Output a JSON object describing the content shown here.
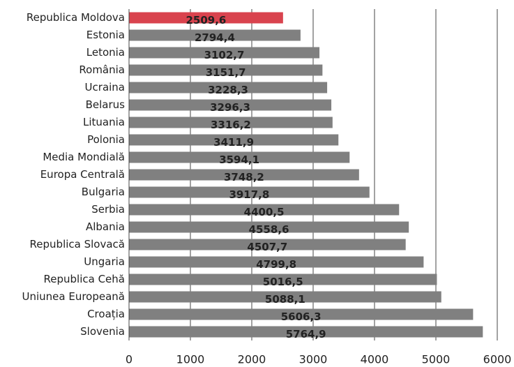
{
  "chart_data": {
    "type": "hbar",
    "categories": [
      "Republica Moldova",
      "Estonia",
      "Letonia",
      "România",
      "Ucraina",
      "Belarus",
      "Lituania",
      "Polonia",
      "Media Mondială",
      "Europa Centrală",
      "Bulgaria",
      "Serbia",
      "Albania",
      "Republica Slovacă",
      "Ungaria",
      "Republica Cehă",
      "Uniunea Europeană",
      "Croația",
      "Slovenia"
    ],
    "values": [
      2509.6,
      2794.4,
      3102.7,
      3151.7,
      3228.3,
      3296.3,
      3316.2,
      3411.9,
      3594.1,
      3748.2,
      3917.8,
      4400.5,
      4558.6,
      4507.7,
      4799.8,
      5016.5,
      5088.1,
      5606.3,
      5764.9
    ],
    "value_labels": [
      "2509,6",
      "2794,4",
      "3102,7",
      "3151,7",
      "3228,3",
      "3296,3",
      "3316,2",
      "3411,9",
      "3594,1",
      "3748,2",
      "3917,8",
      "4400,5",
      "4558,6",
      "4507,7",
      "4799,8",
      "5016,5",
      "5088,1",
      "5606,3",
      "5764,9"
    ],
    "colors": [
      "#d9434e",
      "#808080",
      "#808080",
      "#808080",
      "#808080",
      "#808080",
      "#808080",
      "#808080",
      "#808080",
      "#808080",
      "#808080",
      "#808080",
      "#808080",
      "#808080",
      "#808080",
      "#808080",
      "#808080",
      "#808080",
      "#808080"
    ],
    "xlim": [
      0,
      6000
    ],
    "xticks": [
      0,
      1000,
      2000,
      3000,
      4000,
      5000,
      6000
    ],
    "grid": true
  }
}
